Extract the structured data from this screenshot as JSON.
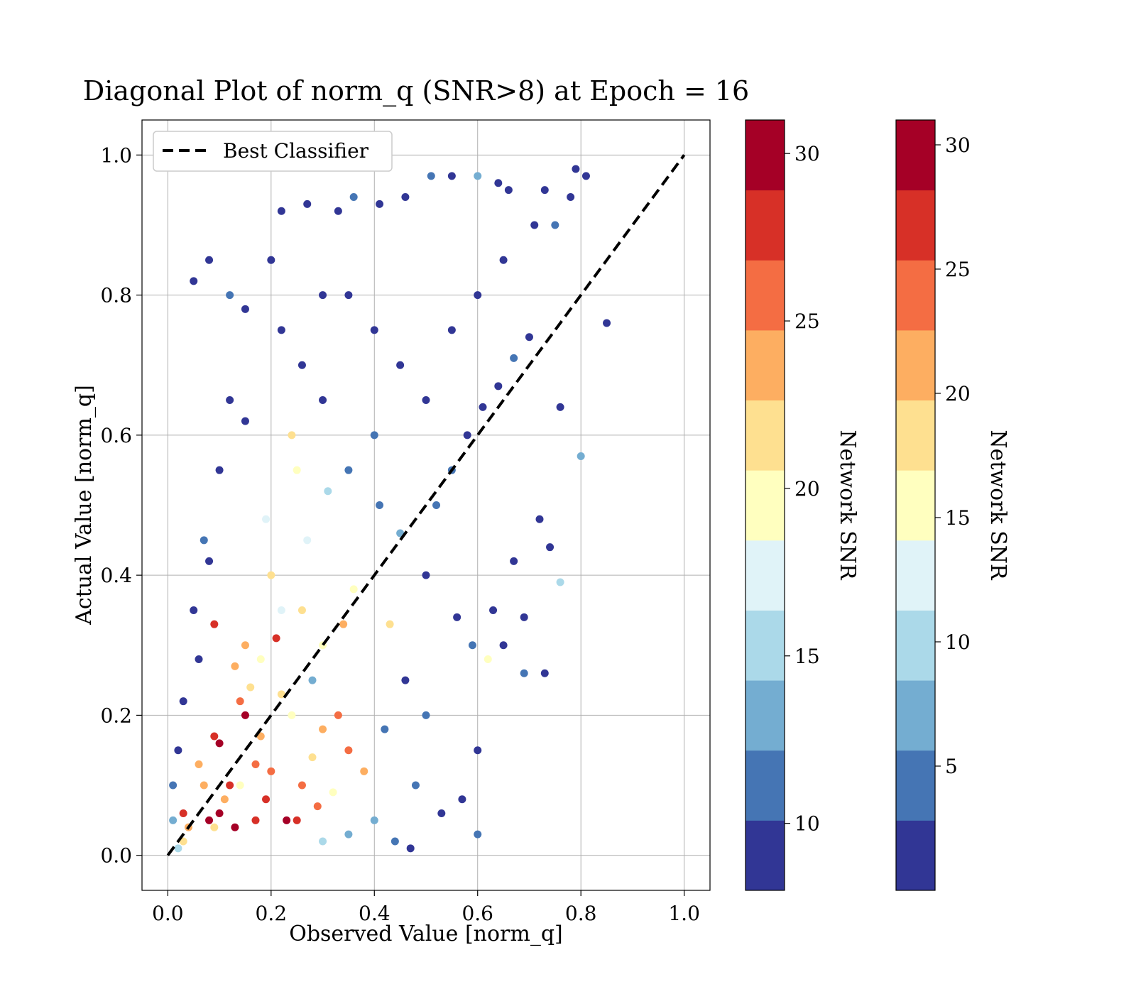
{
  "chart_data": {
    "type": "scatter",
    "title": "Diagonal Plot of norm_q (SNR>8) at Epoch = 16",
    "xlabel": "Observed Value [norm_q]",
    "ylabel": "Actual Value [norm_q]",
    "xlim": [
      -0.05,
      1.05
    ],
    "ylim": [
      -0.05,
      1.05
    ],
    "xticks": [
      "0.0",
      "0.2",
      "0.4",
      "0.6",
      "0.8",
      "1.0"
    ],
    "yticks": [
      "0.0",
      "0.2",
      "0.4",
      "0.6",
      "0.8",
      "1.0"
    ],
    "grid": true,
    "legend": {
      "placement": "upper-left",
      "entries": [
        "Best Classifier"
      ]
    },
    "reference_line": {
      "name": "Best Classifier",
      "style": "dashed",
      "color": "#000000",
      "x": [
        0,
        1
      ],
      "y": [
        0,
        1
      ]
    },
    "colormap": [
      "#313695",
      "#4575b4",
      "#74add1",
      "#abd9e9",
      "#e0f3f8",
      "#ffffbf",
      "#fee090",
      "#fdae61",
      "#f46d43",
      "#d73027",
      "#a50026"
    ],
    "colorbars": [
      {
        "label": "Network SNR",
        "range": [
          8,
          31
        ],
        "ticks": [
          10,
          15,
          20,
          25,
          30
        ]
      },
      {
        "label": "Network SNR",
        "range": [
          0,
          31
        ],
        "ticks": [
          5,
          10,
          15,
          20,
          25,
          30
        ]
      }
    ],
    "points": [
      [
        0.05,
        0.82,
        9
      ],
      [
        0.08,
        0.85,
        9
      ],
      [
        0.15,
        0.78,
        9
      ],
      [
        0.22,
        0.92,
        10
      ],
      [
        0.27,
        0.93,
        9
      ],
      [
        0.33,
        0.92,
        9
      ],
      [
        0.36,
        0.94,
        11
      ],
      [
        0.41,
        0.93,
        9
      ],
      [
        0.46,
        0.94,
        9
      ],
      [
        0.51,
        0.97,
        11
      ],
      [
        0.55,
        0.97,
        9
      ],
      [
        0.6,
        0.97,
        14
      ],
      [
        0.64,
        0.96,
        9
      ],
      [
        0.66,
        0.95,
        9
      ],
      [
        0.79,
        0.98,
        9
      ],
      [
        0.81,
        0.97,
        9
      ],
      [
        0.73,
        0.95,
        9
      ],
      [
        0.71,
        0.9,
        9
      ],
      [
        0.75,
        0.9,
        12
      ],
      [
        0.78,
        0.94,
        9
      ],
      [
        0.85,
        0.76,
        9
      ],
      [
        0.8,
        0.57,
        13
      ],
      [
        0.76,
        0.64,
        9
      ],
      [
        0.74,
        0.44,
        10
      ],
      [
        0.69,
        0.34,
        9
      ],
      [
        0.73,
        0.26,
        9
      ],
      [
        0.69,
        0.26,
        11
      ],
      [
        0.6,
        0.03,
        11
      ],
      [
        0.6,
        0.15,
        9
      ],
      [
        0.57,
        0.08,
        10
      ],
      [
        0.53,
        0.06,
        9
      ],
      [
        0.47,
        0.01,
        9
      ],
      [
        0.65,
        0.3,
        9
      ],
      [
        0.63,
        0.35,
        9
      ],
      [
        0.67,
        0.42,
        10
      ],
      [
        0.72,
        0.48,
        10
      ],
      [
        0.76,
        0.39,
        16
      ],
      [
        0.62,
        0.28,
        20
      ],
      [
        0.59,
        0.3,
        12
      ],
      [
        0.56,
        0.34,
        10
      ],
      [
        0.43,
        0.33,
        22
      ],
      [
        0.34,
        0.33,
        23
      ],
      [
        0.3,
        0.3,
        19
      ],
      [
        0.28,
        0.25,
        13
      ],
      [
        0.24,
        0.6,
        22
      ],
      [
        0.25,
        0.55,
        20
      ],
      [
        0.31,
        0.52,
        15
      ],
      [
        0.19,
        0.48,
        18
      ],
      [
        0.2,
        0.4,
        21
      ],
      [
        0.15,
        0.3,
        24
      ],
      [
        0.09,
        0.33,
        27
      ],
      [
        0.09,
        0.17,
        27
      ],
      [
        0.1,
        0.16,
        29
      ],
      [
        0.15,
        0.2,
        29
      ],
      [
        0.12,
        0.1,
        27
      ],
      [
        0.1,
        0.06,
        29
      ],
      [
        0.08,
        0.05,
        30
      ],
      [
        0.13,
        0.04,
        29
      ],
      [
        0.17,
        0.05,
        27
      ],
      [
        0.23,
        0.05,
        29
      ],
      [
        0.19,
        0.08,
        28
      ],
      [
        0.21,
        0.31,
        27
      ],
      [
        0.35,
        0.15,
        26
      ],
      [
        0.38,
        0.12,
        24
      ],
      [
        0.33,
        0.2,
        25
      ],
      [
        0.3,
        0.18,
        23
      ],
      [
        0.26,
        0.1,
        25
      ],
      [
        0.2,
        0.12,
        25
      ],
      [
        0.17,
        0.13,
        25
      ],
      [
        0.14,
        0.22,
        25
      ],
      [
        0.11,
        0.08,
        24
      ],
      [
        0.07,
        0.1,
        24
      ],
      [
        0.04,
        0.04,
        23
      ],
      [
        0.03,
        0.06,
        27
      ],
      [
        0.06,
        0.13,
        24
      ],
      [
        0.03,
        0.02,
        22
      ],
      [
        0.25,
        0.05,
        28
      ],
      [
        0.29,
        0.07,
        26
      ],
      [
        0.18,
        0.17,
        23
      ],
      [
        0.22,
        0.23,
        22
      ],
      [
        0.16,
        0.24,
        22
      ],
      [
        0.13,
        0.27,
        24
      ],
      [
        0.26,
        0.35,
        21
      ],
      [
        0.36,
        0.38,
        20
      ],
      [
        0.41,
        0.5,
        12
      ],
      [
        0.45,
        0.46,
        13
      ],
      [
        0.5,
        0.4,
        10
      ],
      [
        0.52,
        0.5,
        11
      ],
      [
        0.55,
        0.55,
        12
      ],
      [
        0.58,
        0.6,
        10
      ],
      [
        0.61,
        0.64,
        9
      ],
      [
        0.64,
        0.67,
        10
      ],
      [
        0.67,
        0.71,
        11
      ],
      [
        0.7,
        0.74,
        10
      ],
      [
        0.45,
        0.7,
        9
      ],
      [
        0.4,
        0.75,
        9
      ],
      [
        0.35,
        0.8,
        10
      ],
      [
        0.3,
        0.8,
        9
      ],
      [
        0.2,
        0.85,
        9
      ],
      [
        0.12,
        0.8,
        11
      ],
      [
        0.12,
        0.65,
        9
      ],
      [
        0.15,
        0.62,
        10
      ],
      [
        0.1,
        0.55,
        9
      ],
      [
        0.07,
        0.45,
        11
      ],
      [
        0.08,
        0.42,
        9
      ],
      [
        0.05,
        0.35,
        9
      ],
      [
        0.06,
        0.28,
        10
      ],
      [
        0.03,
        0.22,
        9
      ],
      [
        0.02,
        0.15,
        10
      ],
      [
        0.01,
        0.1,
        11
      ],
      [
        0.01,
        0.05,
        13
      ],
      [
        0.02,
        0.01,
        15
      ],
      [
        0.5,
        0.2,
        11
      ],
      [
        0.46,
        0.25,
        10
      ],
      [
        0.42,
        0.18,
        12
      ],
      [
        0.48,
        0.1,
        11
      ],
      [
        0.4,
        0.05,
        13
      ],
      [
        0.35,
        0.03,
        14
      ],
      [
        0.3,
        0.02,
        16
      ],
      [
        0.44,
        0.02,
        12
      ],
      [
        0.27,
        0.45,
        17
      ],
      [
        0.22,
        0.35,
        18
      ],
      [
        0.18,
        0.28,
        19
      ],
      [
        0.24,
        0.2,
        20
      ],
      [
        0.28,
        0.14,
        21
      ],
      [
        0.32,
        0.09,
        19
      ],
      [
        0.14,
        0.1,
        20
      ],
      [
        0.09,
        0.04,
        21
      ],
      [
        0.4,
        0.6,
        11
      ],
      [
        0.35,
        0.55,
        12
      ],
      [
        0.3,
        0.65,
        10
      ],
      [
        0.26,
        0.7,
        9
      ],
      [
        0.22,
        0.75,
        9
      ],
      [
        0.5,
        0.65,
        10
      ],
      [
        0.55,
        0.75,
        9
      ],
      [
        0.6,
        0.8,
        10
      ],
      [
        0.65,
        0.85,
        9
      ]
    ]
  }
}
